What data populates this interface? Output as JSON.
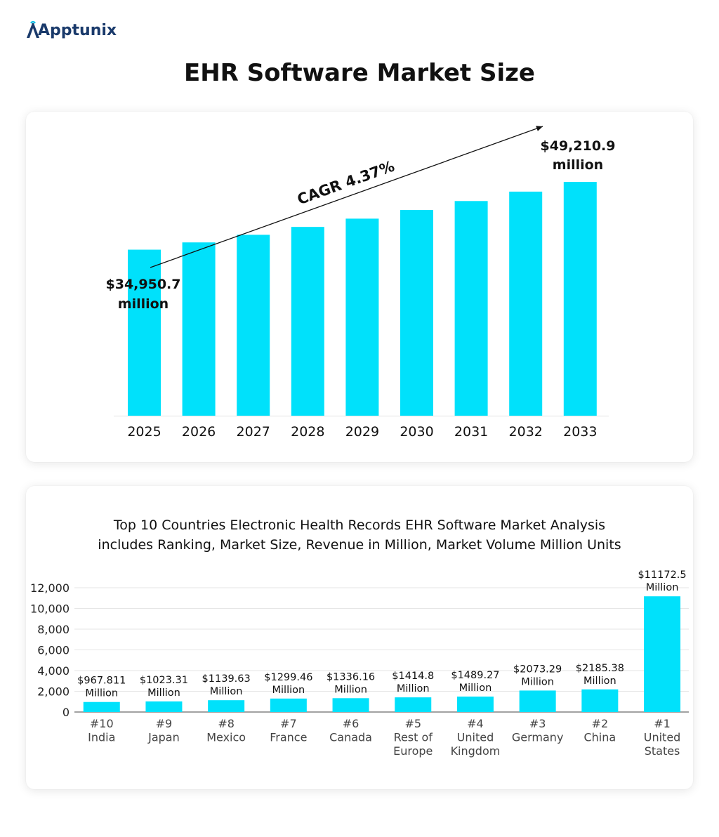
{
  "brand": {
    "name": "Apptunix"
  },
  "page": {
    "title": "EHR Software Market Size"
  },
  "colors": {
    "bar": "#00e1fb",
    "brand": "#1a3a6b",
    "grid": "#e6e6e6"
  },
  "chart_data": [
    {
      "type": "bar",
      "title": "",
      "categories": [
        "2025",
        "2026",
        "2027",
        "2028",
        "2029",
        "2030",
        "2031",
        "2032",
        "2033"
      ],
      "values": [
        34950.7,
        36480,
        38080,
        39740,
        41480,
        43300,
        45190,
        47170,
        49210.9
      ],
      "annotations": {
        "start_label": [
          "$34,950.7",
          "million"
        ],
        "end_label": [
          "$49,210.9",
          "million"
        ],
        "trend_label": "CAGR 4.37%"
      },
      "ylim": [
        0,
        50000
      ],
      "grid": false,
      "legend": "none"
    },
    {
      "type": "bar",
      "title_lines": [
        "Top 10 Countries Electronic Health Records EHR Software Market Analysis",
        "includes Ranking, Market Size, Revenue in Million, Market Volume Million Units"
      ],
      "categories": [
        [
          "#10",
          "India"
        ],
        [
          "#9",
          "Japan"
        ],
        [
          "#8",
          "Mexico"
        ],
        [
          "#7",
          "France"
        ],
        [
          "#6",
          "Canada"
        ],
        [
          "#5",
          "Rest of",
          "Europe"
        ],
        [
          "#4",
          "United",
          "Kingdom"
        ],
        [
          "#3",
          "Germany"
        ],
        [
          "#2",
          "China"
        ],
        [
          "#1",
          "United",
          "States"
        ]
      ],
      "values": [
        967.811,
        1023.31,
        1139.63,
        1299.46,
        1336.16,
        1414.8,
        1489.27,
        2073.29,
        2185.38,
        11172.5
      ],
      "data_labels": [
        [
          "$967.811",
          "Million"
        ],
        [
          "$1023.31",
          "Million"
        ],
        [
          "$1139.63",
          "Million"
        ],
        [
          "$1299.46",
          "Million"
        ],
        [
          "$1336.16",
          "Million"
        ],
        [
          "$1414.8",
          "Million"
        ],
        [
          "$1489.27",
          "Million"
        ],
        [
          "$2073.29",
          "Million"
        ],
        [
          "$2185.38",
          "Million"
        ],
        [
          "$11172.5",
          "Million"
        ]
      ],
      "yticks": [
        "0",
        "2,000",
        "4,000",
        "6,000",
        "8,000",
        "10,000",
        "12,000"
      ],
      "ylim": [
        0,
        12000
      ],
      "grid": true,
      "legend": "none"
    }
  ]
}
